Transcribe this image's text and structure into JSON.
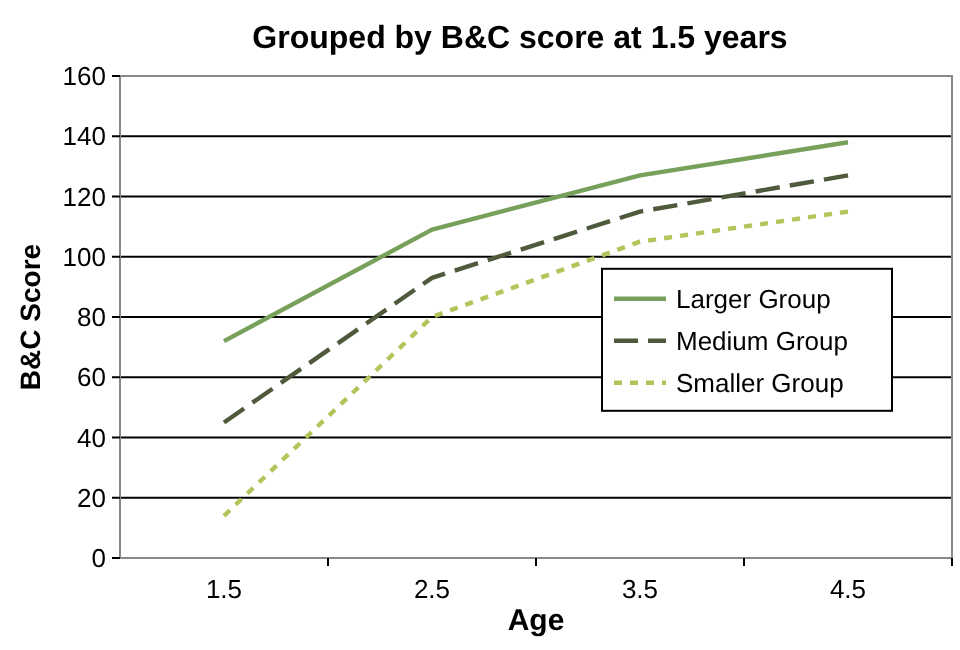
{
  "chart_data": {
    "type": "line",
    "title": "Grouped by B&C score at 1.5 years",
    "xlabel": "Age",
    "ylabel": "B&C Score",
    "categories": [
      "1.5",
      "2.5",
      "3.5",
      "4.5"
    ],
    "series": [
      {
        "name": "Larger Group",
        "color": "#77a05a",
        "values": [
          72,
          109,
          127,
          138
        ],
        "line_style": "solid"
      },
      {
        "name": "Medium Group",
        "color": "#4f5a3c",
        "values": [
          45,
          93,
          115,
          127
        ],
        "line_style": "dashed"
      },
      {
        "name": "Smaller Group",
        "color": "#b5c45a",
        "values": [
          14,
          80,
          105,
          115
        ],
        "line_style": "dotted"
      }
    ],
    "ylim": [
      0,
      160
    ],
    "yticks": [
      0,
      20,
      40,
      60,
      80,
      100,
      120,
      140,
      160
    ],
    "grid": "y",
    "legend": "right",
    "marker": "none"
  }
}
